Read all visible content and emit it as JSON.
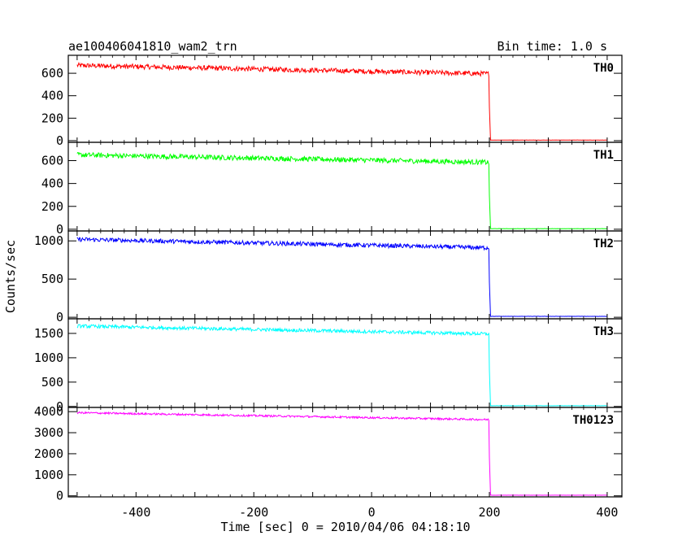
{
  "header": {
    "source_name": "ae100406041810_wam2_trn",
    "bin_time": "Bin time: 1.0 s"
  },
  "chart_data": {
    "type": "line",
    "xlabel": "Time [sec] 0 = 2010/04/06 04:18:10",
    "ylabel": "Counts/sec",
    "xlim": [
      -515,
      425
    ],
    "x_ticks": [
      -400,
      -200,
      0,
      200,
      400
    ],
    "step_time": 200,
    "panels": [
      {
        "name": "TH0",
        "color": "#ff0000",
        "ylim": [
          -15,
          760
        ],
        "y_ticks": [
          0,
          200,
          400,
          600
        ],
        "start_level": 670,
        "pre_step_level": 595,
        "post_step_level": 5,
        "noise": 22
      },
      {
        "name": "TH1",
        "color": "#00ff00",
        "ylim": [
          -15,
          760
        ],
        "y_ticks": [
          0,
          200,
          400,
          600
        ],
        "start_level": 650,
        "pre_step_level": 585,
        "post_step_level": 5,
        "noise": 22
      },
      {
        "name": "TH2",
        "color": "#0000ff",
        "ylim": [
          -20,
          1130
        ],
        "y_ticks": [
          0,
          500,
          1000
        ],
        "start_level": 1020,
        "pre_step_level": 910,
        "post_step_level": 12,
        "noise": 28
      },
      {
        "name": "TH3",
        "color": "#00ffff",
        "ylim": [
          -20,
          1800
        ],
        "y_ticks": [
          0,
          500,
          1000,
          1500
        ],
        "start_level": 1650,
        "pre_step_level": 1490,
        "post_step_level": 15,
        "noise": 35
      },
      {
        "name": "TH0123",
        "color": "#ff00ff",
        "ylim": [
          -50,
          4200
        ],
        "y_ticks": [
          0,
          1000,
          2000,
          3000,
          4000
        ],
        "start_level": 3950,
        "pre_step_level": 3620,
        "post_step_level": 30,
        "noise": 45
      }
    ]
  }
}
